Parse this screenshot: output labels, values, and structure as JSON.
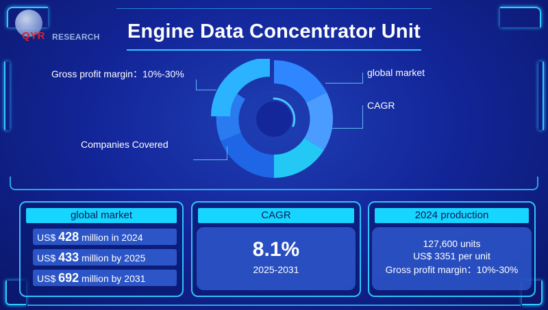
{
  "logo": {
    "qyr": "QYR",
    "research": "RESEARCH"
  },
  "title": "Engine Data Concentrator Unit",
  "donut_callouts": {
    "gross_profit": "Gross profit margin：10%-30%",
    "global_market": "global market",
    "cagr": "CAGR",
    "companies": "Companies Covered"
  },
  "colors": {
    "accent_cyan": "#16d6ff",
    "frame": "#32c8ff",
    "background": "#13269a"
  },
  "panels": {
    "global_market": {
      "header": "global market",
      "rows": [
        {
          "prefix": "US$ ",
          "value": "428",
          "suffix": " million in 2024"
        },
        {
          "prefix": "US$ ",
          "value": "433",
          "suffix": " million by 2025"
        },
        {
          "prefix": "US$ ",
          "value": "692",
          "suffix": " million by 2031"
        }
      ]
    },
    "cagr": {
      "header": "CAGR",
      "value": "8.1%",
      "period": "2025-2031"
    },
    "production": {
      "header": "2024 production",
      "lines": [
        "127,600 units",
        "US$ 3351 per unit",
        "Gross profit margin：10%-30%"
      ]
    }
  }
}
